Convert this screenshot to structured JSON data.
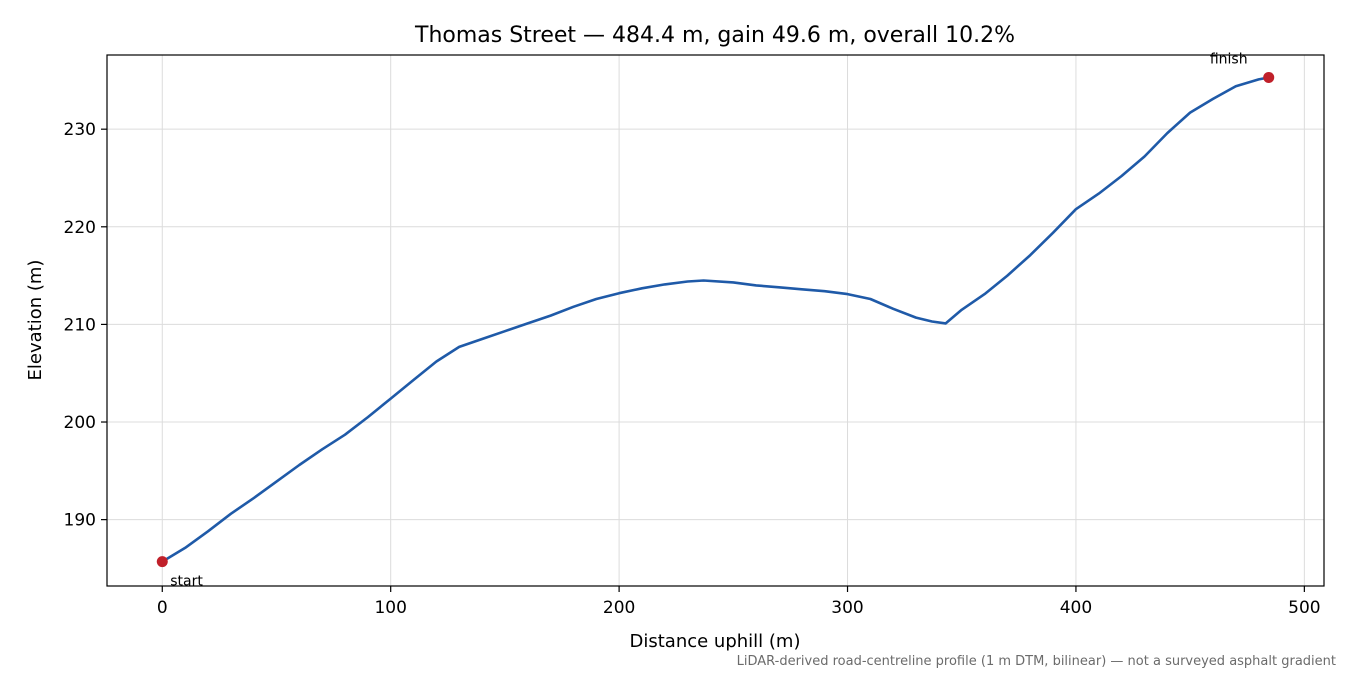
{
  "chart_data": {
    "type": "line",
    "title": "Thomas Street — 484.4 m, gain 49.6 m, overall 10.2%",
    "xlabel": "Distance uphill (m)",
    "ylabel": "Elevation (m)",
    "xlim": [
      -24.2,
      508.6
    ],
    "ylim": [
      183.2,
      237.6
    ],
    "xticks": [
      0,
      100,
      200,
      300,
      400,
      500
    ],
    "yticks": [
      190,
      200,
      210,
      220,
      230
    ],
    "grid": true,
    "line_color": "#1f5aa8",
    "marker_color": "#c0202a",
    "series": [
      {
        "x": [
          0,
          10,
          20,
          30,
          40,
          50,
          60,
          70,
          80,
          90,
          100,
          110,
          120,
          130,
          140,
          150,
          160,
          170,
          180,
          190,
          200,
          210,
          220,
          230,
          237,
          250,
          260,
          270,
          280,
          290,
          300,
          310,
          320,
          330,
          337,
          343,
          350,
          360,
          370,
          380,
          390,
          400,
          410,
          420,
          430,
          440,
          450,
          460,
          470,
          480,
          484.4
        ],
        "y": [
          185.7,
          187.1,
          188.8,
          190.6,
          192.2,
          193.9,
          195.6,
          197.2,
          198.7,
          200.5,
          202.4,
          204.3,
          206.2,
          207.7,
          208.5,
          209.3,
          210.1,
          210.9,
          211.8,
          212.6,
          213.2,
          213.7,
          214.1,
          214.4,
          214.5,
          214.3,
          214.0,
          213.8,
          213.6,
          213.4,
          213.1,
          212.6,
          211.6,
          210.7,
          210.3,
          210.1,
          211.5,
          213.1,
          215.0,
          217.1,
          219.4,
          221.8,
          223.4,
          225.2,
          227.2,
          229.6,
          231.7,
          233.1,
          234.4,
          235.1,
          235.3
        ]
      }
    ],
    "annotations": [
      {
        "text": "start",
        "x": 0,
        "y": 185.7
      },
      {
        "text": "finish",
        "x": 484.4,
        "y": 235.3
      }
    ],
    "footnote": "LiDAR-derived road-centreline profile (1 m DTM, bilinear) — not a surveyed asphalt gradient"
  }
}
